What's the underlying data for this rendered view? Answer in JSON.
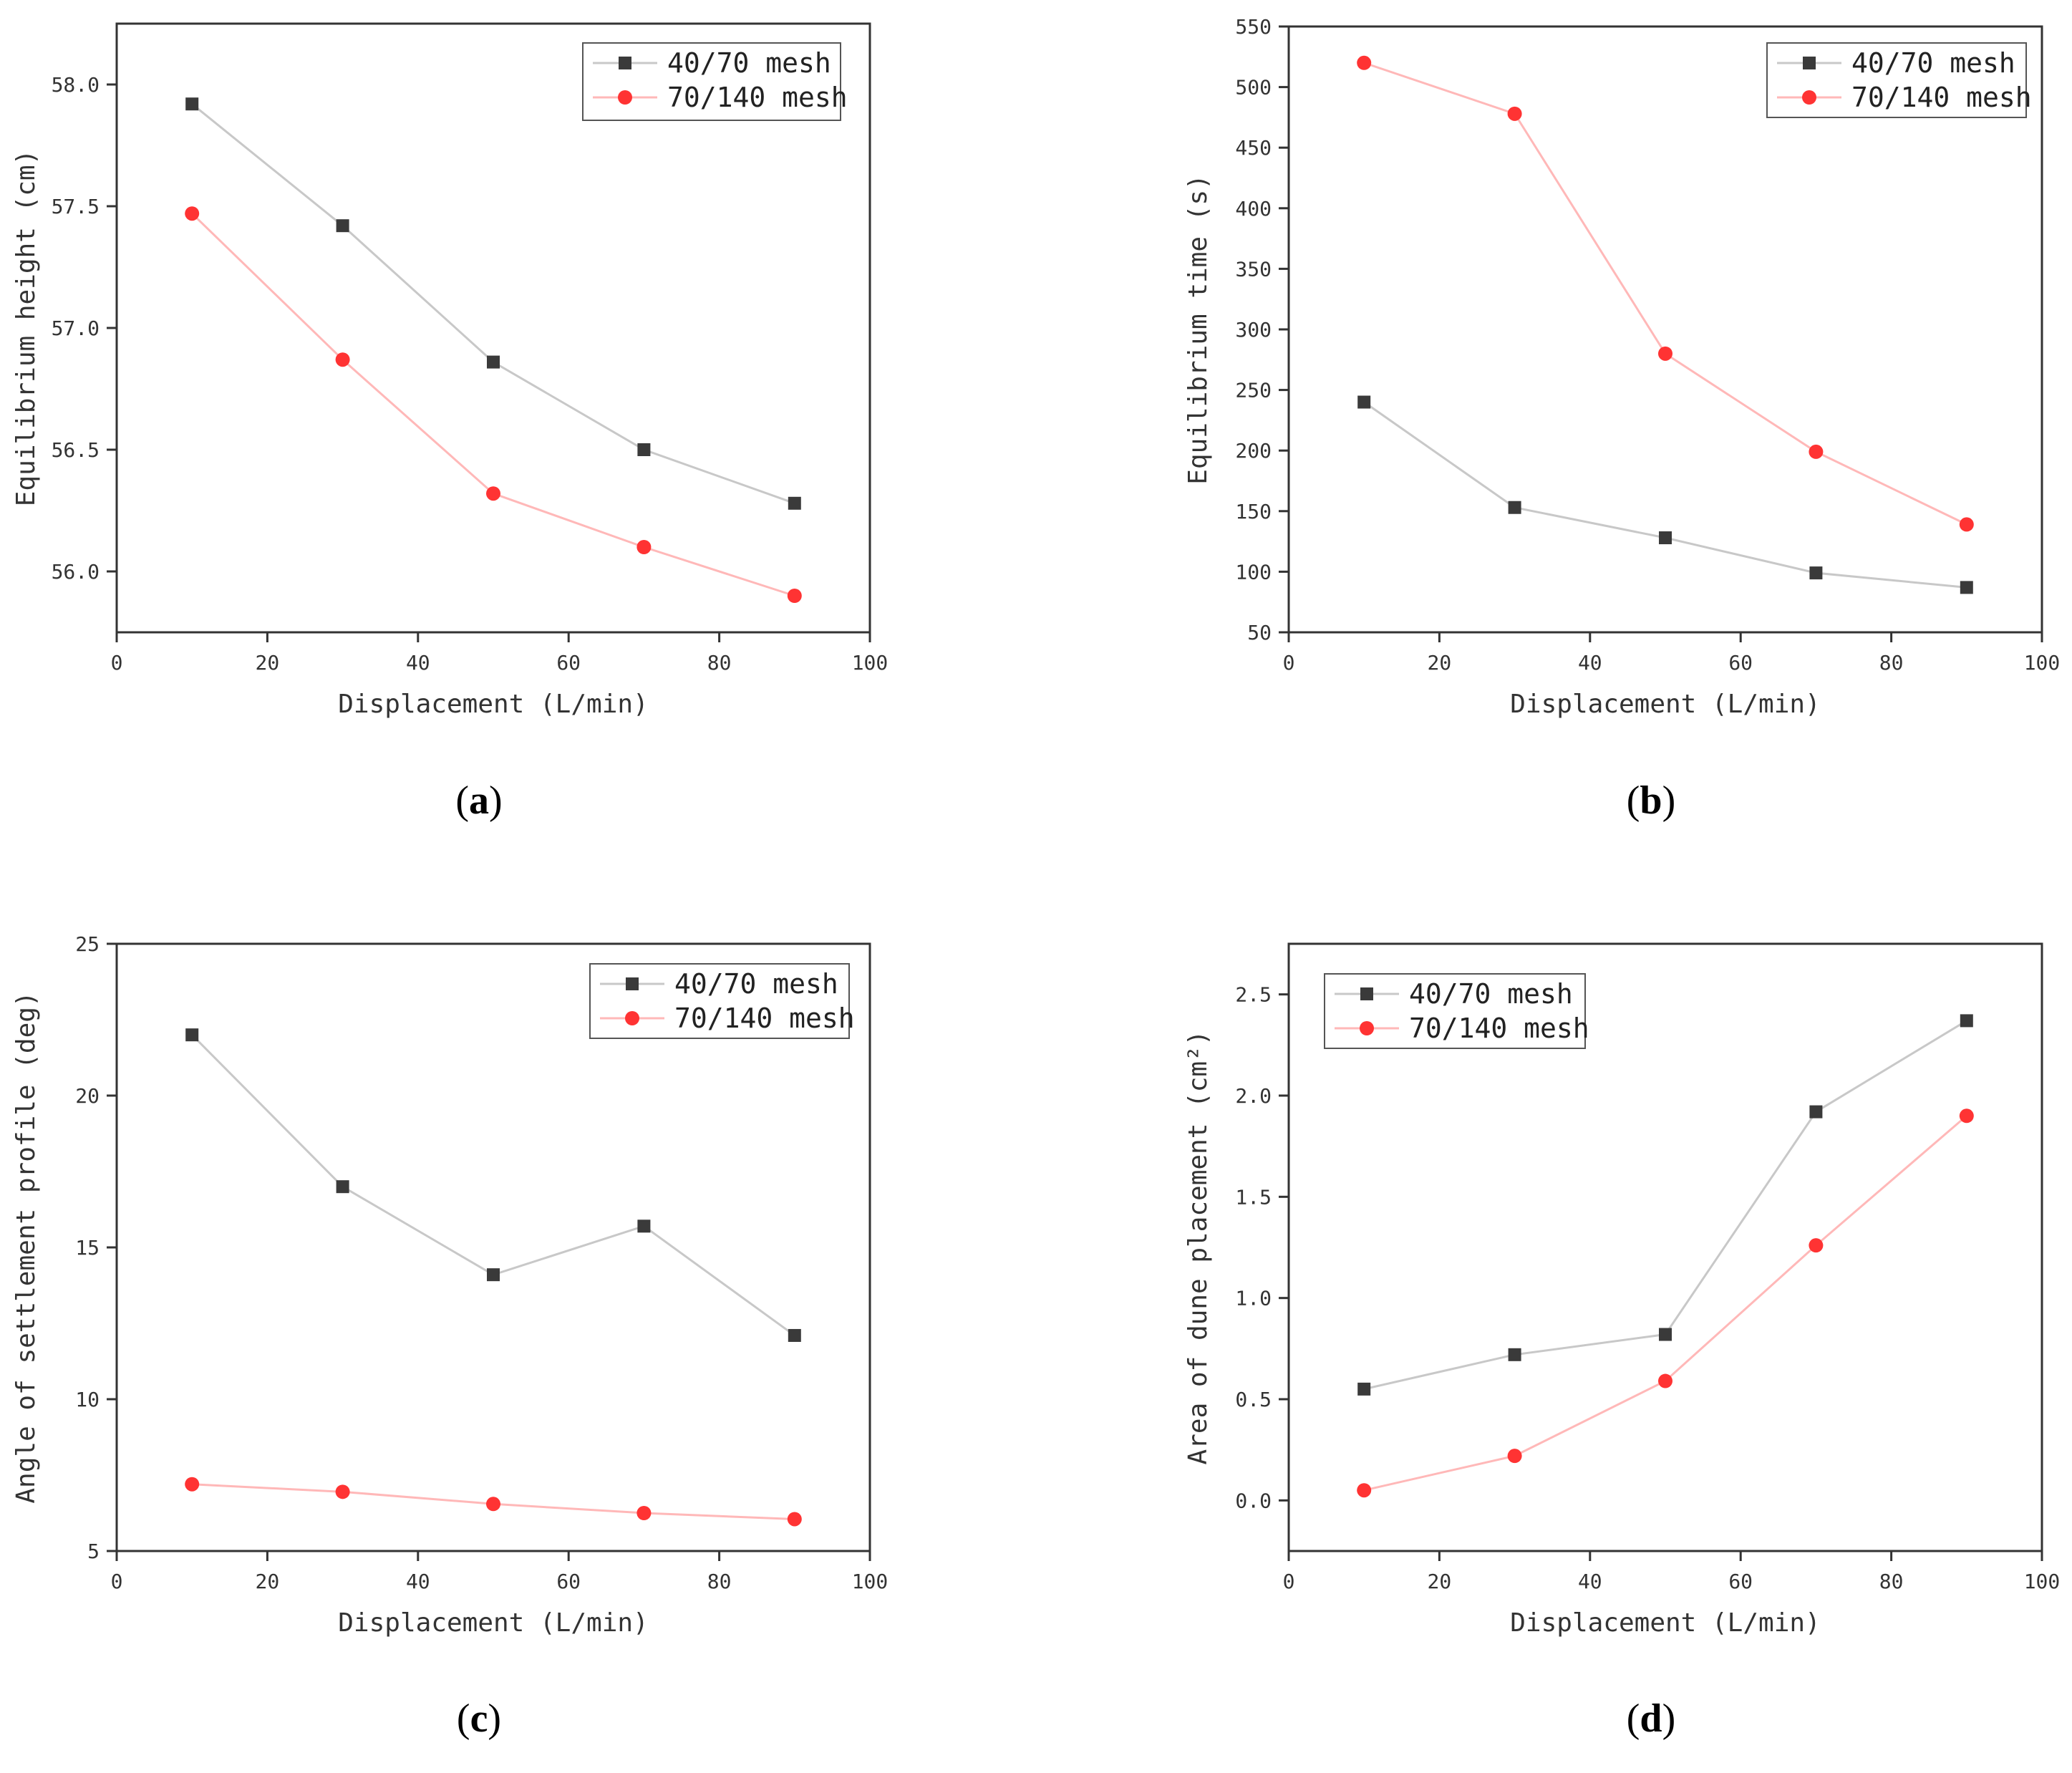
{
  "figure": {
    "colors": {
      "series_black": "#3a3a3a",
      "series_red": "#ff3333",
      "line_black": "#c8c8c8",
      "line_red": "#ffb8b8",
      "axis": "#333333"
    }
  },
  "chart_data": [
    {
      "panel": "(a)",
      "panel_open": "(",
      "panel_letter": "a",
      "panel_close": ")",
      "type": "line",
      "xlabel": "Displacement (L/min)",
      "ylabel": "Equilibrium height (cm)",
      "xlim": [
        0,
        100
      ],
      "ylim": [
        55.75,
        58.25
      ],
      "xticks": [
        0,
        20,
        40,
        60,
        80,
        100
      ],
      "yticks": [
        56.0,
        56.5,
        57.0,
        57.5,
        58.0
      ],
      "ytick_labels": [
        "56.0",
        "56.5",
        "57.0",
        "57.5",
        "58.0"
      ],
      "legend_position": "top-right",
      "x": [
        10,
        30,
        50,
        70,
        90
      ],
      "series": [
        {
          "name": "40/70 mesh",
          "marker": "square",
          "values": [
            57.92,
            57.42,
            56.86,
            56.5,
            56.28
          ]
        },
        {
          "name": "70/140 mesh",
          "marker": "circle",
          "values": [
            57.47,
            56.87,
            56.32,
            56.1,
            55.9
          ]
        }
      ]
    },
    {
      "panel": "(b)",
      "panel_open": "(",
      "panel_letter": "b",
      "panel_close": ")",
      "type": "line",
      "xlabel": "Displacement (L/min)",
      "ylabel": "Equilibrium time (s)",
      "xlim": [
        0,
        100
      ],
      "ylim": [
        50,
        550
      ],
      "xticks": [
        0,
        20,
        40,
        60,
        80,
        100
      ],
      "yticks": [
        50,
        100,
        150,
        200,
        250,
        300,
        350,
        400,
        450,
        500,
        550
      ],
      "ytick_labels": [
        "50",
        "100",
        "150",
        "200",
        "250",
        "300",
        "350",
        "400",
        "450",
        "500",
        "550"
      ],
      "legend_position": "top-right",
      "x": [
        10,
        30,
        50,
        70,
        90
      ],
      "series": [
        {
          "name": "40/70 mesh",
          "marker": "square",
          "values": [
            240,
            153,
            128,
            99,
            87
          ]
        },
        {
          "name": "70/140 mesh",
          "marker": "circle",
          "values": [
            520,
            478,
            280,
            199,
            139
          ]
        }
      ]
    },
    {
      "panel": "(c)",
      "panel_open": "(",
      "panel_letter": "c",
      "panel_close": ")",
      "type": "line",
      "xlabel": "Displacement (L/min)",
      "ylabel": "Angle of settlement profile (deg)",
      "xlim": [
        0,
        100
      ],
      "ylim": [
        5,
        25
      ],
      "xticks": [
        0,
        20,
        40,
        60,
        80,
        100
      ],
      "yticks": [
        5,
        10,
        15,
        20,
        25
      ],
      "ytick_labels": [
        "5",
        "10",
        "15",
        "20",
        "25"
      ],
      "legend_position": "top-right",
      "x": [
        10,
        30,
        50,
        70,
        90
      ],
      "series": [
        {
          "name": "40/70 mesh",
          "marker": "square",
          "values": [
            22.0,
            17.0,
            14.1,
            15.7,
            12.1
          ]
        },
        {
          "name": "70/140 mesh",
          "marker": "circle",
          "values": [
            7.2,
            6.95,
            6.55,
            6.25,
            6.05
          ]
        }
      ]
    },
    {
      "panel": "(d)",
      "panel_open": "(",
      "panel_letter": "d",
      "panel_close": ")",
      "type": "line",
      "xlabel": "Displacement (L/min)",
      "ylabel": "Area of dune placement (cm²)",
      "xlim": [
        0,
        100
      ],
      "ylim": [
        -0.25,
        2.75
      ],
      "xticks": [
        0,
        20,
        40,
        60,
        80,
        100
      ],
      "yticks": [
        0.0,
        0.5,
        1.0,
        1.5,
        2.0,
        2.5
      ],
      "ytick_labels": [
        "0.0",
        "0.5",
        "1.0",
        "1.5",
        "2.0",
        "2.5"
      ],
      "legend_position": "top-left",
      "x": [
        10,
        30,
        50,
        70,
        90
      ],
      "series": [
        {
          "name": "40/70 mesh",
          "marker": "square",
          "values": [
            0.55,
            0.72,
            0.82,
            1.92,
            2.37
          ]
        },
        {
          "name": "70/140 mesh",
          "marker": "circle",
          "values": [
            0.05,
            0.22,
            0.59,
            1.26,
            1.9
          ]
        }
      ]
    }
  ]
}
